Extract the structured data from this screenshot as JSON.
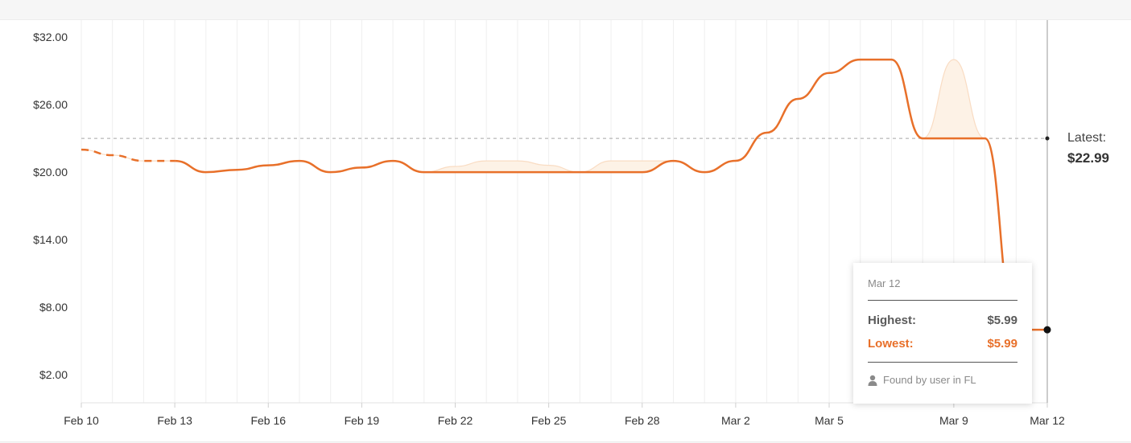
{
  "chart_data": {
    "type": "line",
    "x_dates": [
      "Feb 10",
      "Feb 11",
      "Feb 12",
      "Feb 13",
      "Feb 14",
      "Feb 15",
      "Feb 16",
      "Feb 17",
      "Feb 18",
      "Feb 19",
      "Feb 20",
      "Feb 21",
      "Feb 22",
      "Feb 23",
      "Feb 24",
      "Feb 25",
      "Feb 26",
      "Feb 27",
      "Feb 28",
      "Feb 29",
      "Mar 1",
      "Mar 2",
      "Mar 3",
      "Mar 4",
      "Mar 5",
      "Mar 6",
      "Mar 7",
      "Mar 8",
      "Mar 9",
      "Mar 10",
      "Mar 11",
      "Mar 12"
    ],
    "x_tick_labels": [
      "Feb 10",
      "Feb 13",
      "Feb 16",
      "Feb 19",
      "Feb 22",
      "Feb 25",
      "Feb 28",
      "Mar 2",
      "Mar 5",
      "Mar 9",
      "Mar 12"
    ],
    "y_tick_labels": [
      "$32.00",
      "$26.00",
      "$20.00",
      "$14.00",
      "$8.00",
      "$2.00"
    ],
    "ylim": [
      -0.5,
      33.5
    ],
    "y_ticks": [
      32,
      26,
      20,
      14,
      8,
      2
    ],
    "grid": "vertical",
    "series": [
      {
        "style": "line",
        "color": "#e8702a",
        "values": [
          21.99,
          21.5,
          20.99,
          20.99,
          19.99,
          20.2,
          20.6,
          20.99,
          19.99,
          20.4,
          20.99,
          19.99,
          19.99,
          19.99,
          19.99,
          19.99,
          19.99,
          19.99,
          19.99,
          20.99,
          19.99,
          21.0,
          23.5,
          26.5,
          28.8,
          29.99,
          29.99,
          22.99,
          22.99,
          22.99,
          5.99,
          5.99
        ],
        "dashed_segment_end": "Feb 13"
      },
      {
        "style": "band",
        "color": "#fdf2e6",
        "values": [
          21.99,
          21.5,
          20.99,
          20.99,
          19.99,
          20.2,
          20.6,
          20.99,
          19.99,
          20.4,
          20.99,
          19.99,
          20.5,
          20.99,
          20.99,
          20.6,
          19.99,
          20.99,
          20.99,
          20.99,
          19.99,
          21.0,
          23.5,
          26.5,
          28.8,
          29.99,
          29.99,
          22.99,
          29.99,
          22.99,
          5.99,
          5.99
        ]
      }
    ],
    "reference_line": {
      "value": 22.99,
      "label": "Latest:",
      "value_label": "$22.99"
    }
  },
  "tooltip": {
    "date": "Mar 12",
    "highest_label": "Highest:",
    "highest_value": "$5.99",
    "lowest_label": "Lowest:",
    "lowest_value": "$5.99",
    "footer": "Found by user in FL",
    "footer_icon": "user-icon"
  },
  "colors": {
    "line": "#e8702a",
    "band": "#fdf2e6",
    "grid": "#efefef",
    "reference": "#a8a8a8"
  }
}
